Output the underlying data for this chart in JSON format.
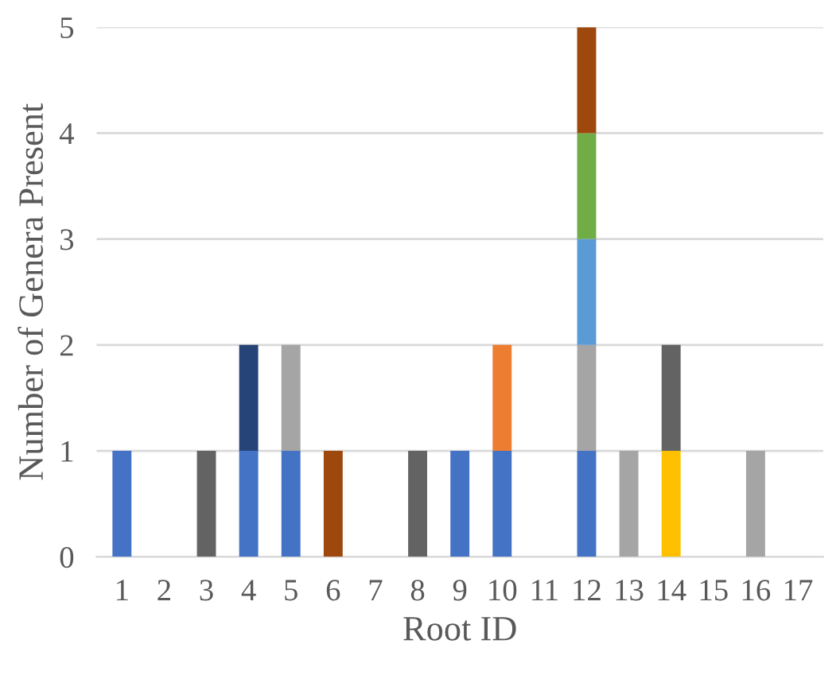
{
  "chart_data": {
    "type": "bar",
    "stacked": true,
    "xlabel": "Root ID",
    "ylabel": "Number of Genera Present",
    "categories": [
      "1",
      "2",
      "3",
      "4",
      "5",
      "6",
      "7",
      "8",
      "9",
      "10",
      "11",
      "12",
      "13",
      "14",
      "15",
      "16",
      "17"
    ],
    "series": [
      {
        "color": "#4472c4",
        "values": [
          1,
          null,
          null,
          1,
          1,
          null,
          null,
          null,
          1,
          1,
          null,
          1,
          null,
          null,
          null,
          null,
          null
        ]
      },
      {
        "color": "#ffc000",
        "values": [
          null,
          null,
          null,
          null,
          null,
          null,
          null,
          null,
          null,
          null,
          null,
          null,
          null,
          1,
          null,
          null,
          null
        ]
      },
      {
        "color": "#a5a5a5",
        "values": [
          null,
          null,
          null,
          null,
          1,
          null,
          null,
          null,
          null,
          null,
          null,
          1,
          1,
          null,
          null,
          1,
          null
        ]
      },
      {
        "color": "#636363",
        "values": [
          null,
          null,
          1,
          null,
          null,
          null,
          null,
          1,
          null,
          null,
          null,
          null,
          null,
          1,
          null,
          null,
          null
        ]
      },
      {
        "color": "#264478",
        "values": [
          null,
          null,
          null,
          1,
          null,
          null,
          null,
          null,
          null,
          null,
          null,
          null,
          null,
          null,
          null,
          null,
          null
        ]
      },
      {
        "color": "#ed7d31",
        "values": [
          null,
          null,
          null,
          null,
          null,
          null,
          null,
          null,
          null,
          1,
          null,
          null,
          null,
          null,
          null,
          null,
          null
        ]
      },
      {
        "color": "#5b9bd5",
        "values": [
          null,
          null,
          null,
          null,
          null,
          null,
          null,
          null,
          null,
          null,
          null,
          1,
          null,
          null,
          null,
          null,
          null
        ]
      },
      {
        "color": "#70ad47",
        "values": [
          null,
          null,
          null,
          null,
          null,
          null,
          null,
          null,
          null,
          null,
          null,
          1,
          null,
          null,
          null,
          null,
          null
        ]
      },
      {
        "color": "#9e480e",
        "values": [
          null,
          null,
          null,
          null,
          null,
          1,
          null,
          null,
          null,
          null,
          null,
          1,
          null,
          null,
          null,
          null,
          null
        ]
      }
    ],
    "ylim": [
      0,
      5
    ],
    "yticks": [
      0,
      1,
      2,
      3,
      4,
      5
    ],
    "grid": "y",
    "legend": false
  }
}
